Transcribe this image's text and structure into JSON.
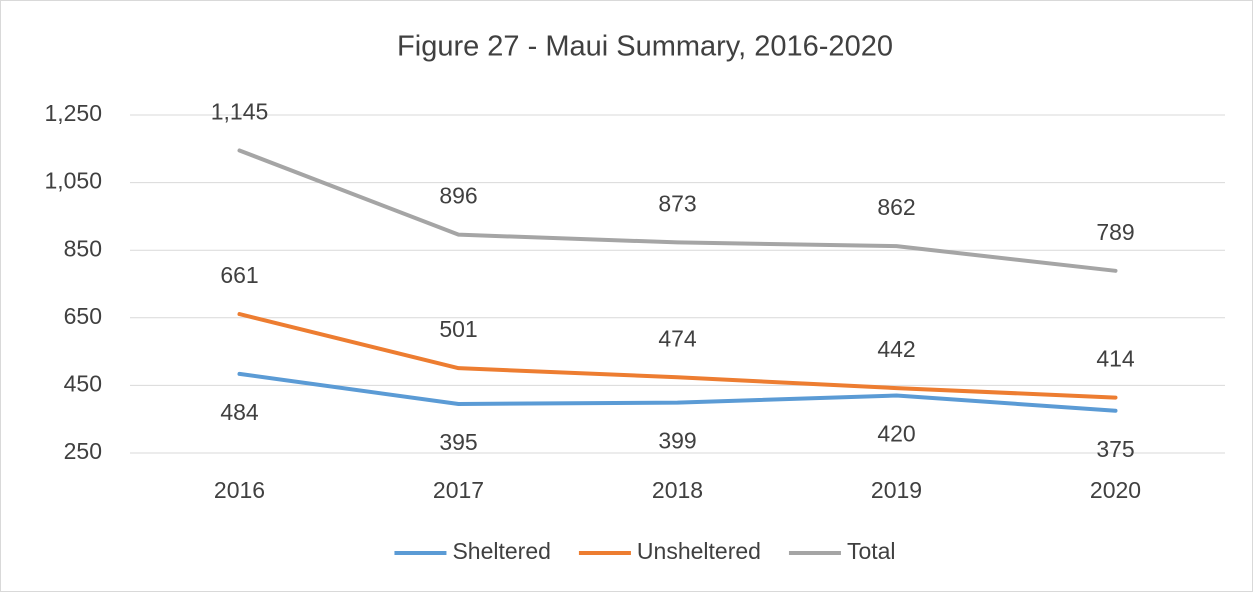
{
  "chart_data": {
    "type": "line",
    "title": "Figure 27 - Maui Summary, 2016-2020",
    "categories": [
      "2016",
      "2017",
      "2018",
      "2019",
      "2020"
    ],
    "series": [
      {
        "name": "Sheltered",
        "color": "#5b9bd5",
        "values": [
          484,
          395,
          399,
          420,
          375
        ]
      },
      {
        "name": "Unsheltered",
        "color": "#ed7d31",
        "values": [
          661,
          501,
          474,
          442,
          414
        ]
      },
      {
        "name": "Total",
        "color": "#a5a5a5",
        "values": [
          1145,
          896,
          873,
          862,
          789
        ],
        "value_labels": [
          "1,145",
          "896",
          "873",
          "862",
          "789"
        ]
      }
    ],
    "ylim": [
      250,
      1250
    ],
    "yticks": [
      250,
      450,
      650,
      850,
      {
        "value": 1050,
        "label": "1,050"
      },
      {
        "value": 1250,
        "label": "1,250"
      }
    ],
    "grid": true,
    "legend": "bottom"
  }
}
